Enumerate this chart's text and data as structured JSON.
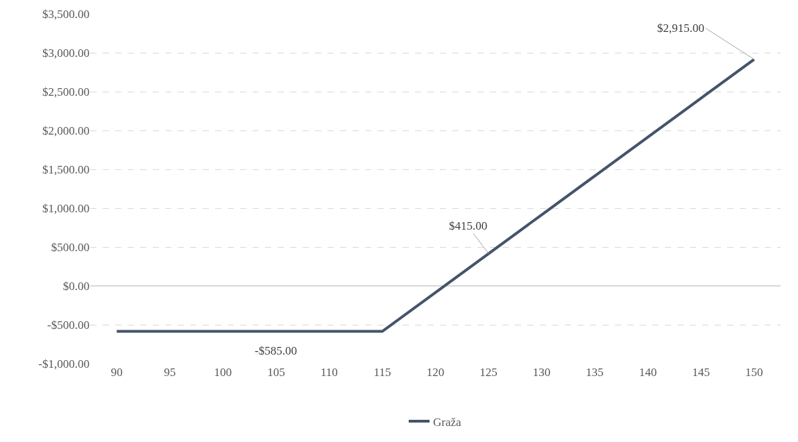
{
  "chart_data": {
    "type": "line",
    "categories": [
      "90",
      "95",
      "100",
      "105",
      "110",
      "115",
      "120",
      "125",
      "130",
      "135",
      "140",
      "145",
      "150"
    ],
    "series": [
      {
        "name": "Graža",
        "color": "#44546a",
        "values": [
          -585,
          -585,
          -585,
          -585,
          -585,
          -585,
          -85,
          415,
          915,
          1415,
          1915,
          2415,
          2915
        ],
        "value_labels": [
          null,
          null,
          null,
          "-$585.00",
          null,
          null,
          null,
          "$415.00",
          null,
          null,
          null,
          null,
          "$2,915.00"
        ]
      }
    ],
    "ylim": [
      -1000,
      3500
    ],
    "yticks": [
      {
        "value": -1000,
        "label": "-$1,000.00"
      },
      {
        "value": -500,
        "label": "-$500.00"
      },
      {
        "value": 0,
        "label": "$0.00"
      },
      {
        "value": 500,
        "label": "$500.00"
      },
      {
        "value": 1000,
        "label": "$1,000.00"
      },
      {
        "value": 1500,
        "label": "$1,500.00"
      },
      {
        "value": 2000,
        "label": "$2,000.00"
      },
      {
        "value": 2500,
        "label": "$2,500.00"
      },
      {
        "value": 3000,
        "label": "$3,000.00"
      },
      {
        "value": 3500,
        "label": "$3,500.00"
      }
    ],
    "grid": "y",
    "legend": "bottom",
    "marker": "none",
    "line_style": "solid"
  }
}
